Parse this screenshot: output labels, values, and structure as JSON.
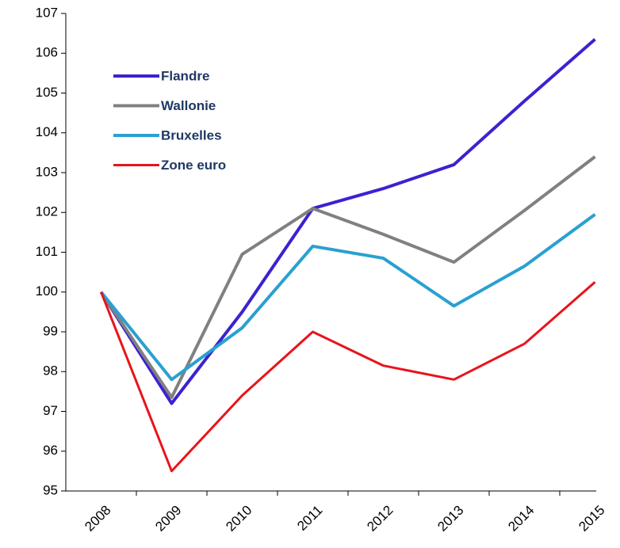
{
  "chart_data": {
    "type": "line",
    "categories": [
      "2008",
      "2009",
      "2010",
      "2011",
      "2012",
      "2013",
      "2014",
      "2015"
    ],
    "series": [
      {
        "name": "Flandre",
        "color": "#3b22d0",
        "values": [
          100,
          97.2,
          99.5,
          102.1,
          102.6,
          103.2,
          104.8,
          106.35
        ]
      },
      {
        "name": "Wallonie",
        "color": "#808080",
        "values": [
          100,
          97.35,
          100.95,
          102.1,
          101.45,
          100.75,
          102.05,
          103.4
        ]
      },
      {
        "name": "Bruxelles",
        "color": "#2aa0d0",
        "values": [
          100,
          97.8,
          99.1,
          101.15,
          100.85,
          99.65,
          100.65,
          101.95
        ]
      },
      {
        "name": "Zone euro",
        "color": "#e8141c",
        "values": [
          100,
          95.5,
          97.4,
          99.0,
          98.15,
          97.8,
          98.7,
          100.25
        ]
      }
    ],
    "ylim": [
      95,
      107
    ],
    "yticks": [
      95,
      96,
      97,
      98,
      99,
      100,
      101,
      102,
      103,
      104,
      105,
      106,
      107
    ],
    "grid": false,
    "legend": "upper left"
  }
}
